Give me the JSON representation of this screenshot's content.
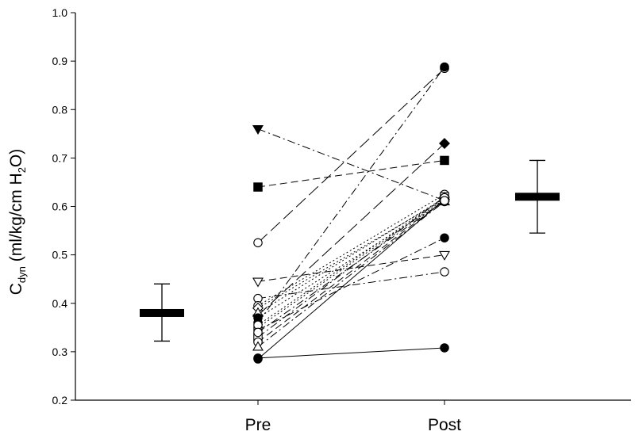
{
  "chart_data": {
    "type": "scatter",
    "ylabel": {
      "main": "C",
      "sub": "dyn",
      "rest1": " (ml/kg/cm H",
      "sub2": "2",
      "rest2": "O)"
    },
    "categories": [
      "Pre",
      "Post"
    ],
    "ylim": [
      0.2,
      1.0
    ],
    "yticks": [
      "0.2",
      "0.3",
      "0.4",
      "0.5",
      "0.6",
      "0.7",
      "0.8",
      "0.9",
      "1.0"
    ],
    "grid": false,
    "legend": "none",
    "series": [
      {
        "pre": 0.287,
        "post": 0.308,
        "marker": "filled-circle",
        "dash": "solid"
      },
      {
        "pre": 0.64,
        "post": 0.695,
        "marker": "filled-square",
        "dash": "dash"
      },
      {
        "pre": 0.76,
        "post": 0.612,
        "marker": "filled-triangle-down",
        "dash": "dashdot"
      },
      {
        "pre": 0.525,
        "post": 0.885,
        "marker": "open-circle",
        "dash": "longdash"
      },
      {
        "pre": 0.445,
        "post": 0.5,
        "marker": "open-triangle-down",
        "dash": "dash"
      },
      {
        "pre": 0.41,
        "post": 0.465,
        "marker": "open-circle",
        "dash": "dashdot"
      },
      {
        "pre": 0.36,
        "post": 0.888,
        "marker": "filled-circle",
        "dash": "dashdot"
      },
      {
        "pre": 0.375,
        "post": 0.73,
        "marker": "filled-diamond",
        "dash": "longdash"
      },
      {
        "pre": 0.345,
        "post": 0.535,
        "marker": "filled-circle",
        "dash": "dashdot"
      },
      {
        "pre": 0.395,
        "post": 0.625,
        "marker": "open-circle",
        "dash": "dot"
      },
      {
        "pre": 0.33,
        "post": 0.62,
        "marker": "open-square",
        "dash": "dashdot"
      },
      {
        "pre": 0.39,
        "post": 0.615,
        "marker": "open-diamond",
        "dash": "dot"
      },
      {
        "pre": 0.38,
        "post": 0.618,
        "marker": "open-triangle-up",
        "dash": "dot"
      },
      {
        "pre": 0.32,
        "post": 0.612,
        "marker": "open-circle",
        "dash": "dash"
      },
      {
        "pre": 0.31,
        "post": 0.61,
        "marker": "open-triangle-up",
        "dash": "dashdot"
      },
      {
        "pre": 0.35,
        "post": 0.615,
        "marker": "open-circle",
        "dash": "dot"
      },
      {
        "pre": 0.285,
        "post": 0.615,
        "marker": "filled-circle",
        "dash": "solid"
      },
      {
        "pre": 0.37,
        "post": 0.61,
        "marker": "filled-circle",
        "dash": "dot"
      },
      {
        "pre": 0.355,
        "post": 0.618,
        "marker": "open-circle",
        "dash": "dot"
      },
      {
        "pre": 0.34,
        "post": 0.612,
        "marker": "open-circle",
        "dash": "dashdot"
      }
    ],
    "summary": [
      {
        "group": "Pre",
        "mean": 0.38,
        "low": 0.322,
        "high": 0.44
      },
      {
        "group": "Post",
        "mean": 0.62,
        "low": 0.545,
        "high": 0.695
      }
    ]
  }
}
